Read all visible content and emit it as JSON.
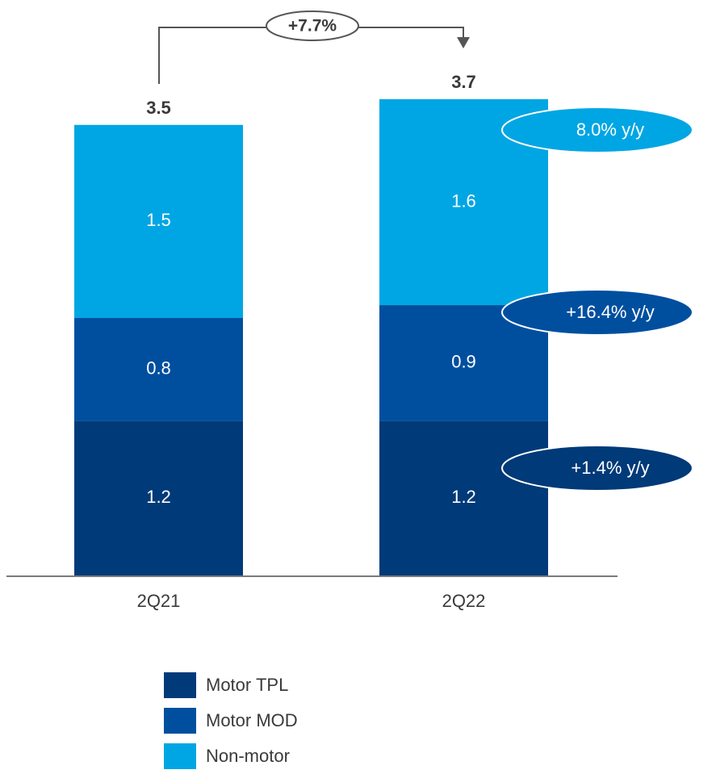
{
  "chart_data": {
    "type": "bar",
    "stacked": true,
    "categories": [
      "2Q21",
      "2Q22"
    ],
    "series": [
      {
        "name": "Motor TPL",
        "values": [
          1.2,
          1.2
        ],
        "color": "#003a78"
      },
      {
        "name": "Motor MOD",
        "values": [
          0.8,
          0.9
        ],
        "color": "#004f9f"
      },
      {
        "name": "Non-motor",
        "values": [
          1.5,
          1.6
        ],
        "color": "#00a6e3"
      }
    ],
    "totals": [
      "3.5",
      "3.7"
    ],
    "segment_labels": [
      [
        "1.2",
        "0.8",
        "1.5"
      ],
      [
        "1.2",
        "0.9",
        "1.6"
      ]
    ],
    "growth_label": "+7.7%",
    "yoy_labels": [
      {
        "series": "Motor TPL",
        "text": "+1.4% y/y"
      },
      {
        "series": "Motor MOD",
        "text": "+16.4% y/y"
      },
      {
        "series": "Non-motor",
        "text": "8.0% y/y"
      }
    ],
    "legend_position": "bottom",
    "grid": false
  },
  "legend": {
    "items": [
      {
        "label": "Motor TPL",
        "color": "#003a78"
      },
      {
        "label": "Motor MOD",
        "color": "#004f9f"
      },
      {
        "label": "Non-motor",
        "color": "#00a6e3"
      }
    ]
  }
}
